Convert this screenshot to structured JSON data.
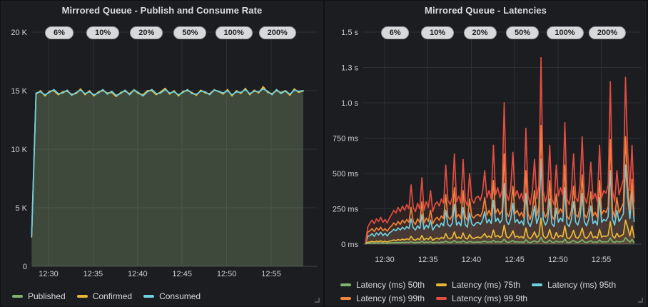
{
  "page": {
    "background": "#131418",
    "panel_background": "#1b1d20"
  },
  "charts": [
    {
      "title": "Mirrored Queue - Publish and Consume Rate",
      "type": "line",
      "x_start": 28.1,
      "x_step": 0.5,
      "x_axis": {
        "ticks": [
          {
            "t": 30,
            "label": "12:30"
          },
          {
            "t": 35,
            "label": "12:35"
          },
          {
            "t": 40,
            "label": "12:40"
          },
          {
            "t": 45,
            "label": "12:45"
          },
          {
            "t": 50,
            "label": "12:50"
          },
          {
            "t": 55,
            "label": "12:55"
          }
        ]
      },
      "y_axis": {
        "max": 20000,
        "ticks": [
          {
            "v": 0,
            "label": "0"
          },
          {
            "v": 5000,
            "label": "5 K"
          },
          {
            "v": 10000,
            "label": "10 K"
          },
          {
            "v": 15000,
            "label": "15 K"
          },
          {
            "v": 20000,
            "label": "20 K"
          }
        ]
      },
      "annotations": [
        {
          "t": 31.2,
          "label": "6%"
        },
        {
          "t": 36.1,
          "label": "10%"
        },
        {
          "t": 41.0,
          "label": "20%"
        },
        {
          "t": 45.9,
          "label": "50%"
        },
        {
          "t": 50.8,
          "label": "100%"
        },
        {
          "t": 55.7,
          "label": "200%"
        }
      ],
      "series": [
        {
          "name": "Published",
          "color": "#7EB26D",
          "values": [
            2600,
            14750,
            14950,
            14600,
            14900,
            15050,
            14700,
            14850,
            15000,
            14650,
            14800,
            15100,
            14700,
            14950,
            14600,
            14850,
            15050,
            14750,
            14900,
            14550,
            14800,
            15000,
            14700,
            15100,
            14800,
            14600,
            14950,
            15050,
            14700,
            14850,
            15150,
            14750,
            14950,
            14600,
            14900,
            15050,
            14800,
            14650,
            15000,
            14850,
            14700,
            15100,
            14900,
            14750,
            15050,
            14600,
            14950,
            14800,
            15150,
            14700,
            15000,
            14850,
            15200,
            14900,
            14700,
            15050,
            14800,
            14950,
            14650,
            15100,
            14900,
            14950
          ]
        },
        {
          "name": "Confirmed",
          "color": "#EAB839",
          "values": [
            2500,
            14700,
            15000,
            14550,
            14950,
            15000,
            14650,
            14900,
            14950,
            14700,
            14750,
            15150,
            14650,
            15000,
            14550,
            14900,
            15000,
            14800,
            14850,
            14500,
            14850,
            14950,
            14750,
            15050,
            14750,
            14650,
            15000,
            15000,
            14650,
            14900,
            15200,
            14700,
            15000,
            14550,
            14950,
            15000,
            14850,
            14600,
            15050,
            14800,
            14750,
            15050,
            14950,
            14700,
            15100,
            14550,
            15000,
            14750,
            15200,
            14650,
            15050,
            14800,
            15350,
            14850,
            14750,
            15000,
            14850,
            15000,
            14600,
            15150,
            14850,
            15000
          ]
        },
        {
          "name": "Consumed",
          "color": "#6ED0E0",
          "values": [
            2550,
            14800,
            14900,
            14650,
            14850,
            15100,
            14750,
            14800,
            15050,
            14600,
            14850,
            15050,
            14750,
            14900,
            14650,
            14800,
            15100,
            14700,
            14950,
            14600,
            14750,
            15050,
            14650,
            15050,
            14850,
            14550,
            14900,
            15100,
            14750,
            14800,
            15100,
            14800,
            14900,
            14650,
            14850,
            15100,
            14750,
            14700,
            14950,
            14900,
            14650,
            15050,
            14950,
            14800,
            15000,
            14650,
            14900,
            14850,
            15100,
            14750,
            14950,
            14900,
            15150,
            14950,
            14650,
            15100,
            14750,
            15000,
            14700,
            15050,
            14950,
            15000
          ]
        }
      ]
    },
    {
      "title": "Mirrored Queue - Latencies",
      "type": "line",
      "x_start": 27.8,
      "x_step": 0.25,
      "x_axis": {
        "ticks": [
          {
            "t": 30,
            "label": "12:30"
          },
          {
            "t": 35,
            "label": "12:35"
          },
          {
            "t": 40,
            "label": "12:40"
          },
          {
            "t": 45,
            "label": "12:45"
          },
          {
            "t": 50,
            "label": "12:50"
          },
          {
            "t": 55,
            "label": "12:55"
          }
        ]
      },
      "y_axis": {
        "max": 1500,
        "ticks": [
          {
            "v": 0,
            "label": "0 ms"
          },
          {
            "v": 250,
            "label": "250 ms"
          },
          {
            "v": 500,
            "label": "500 ms"
          },
          {
            "v": 750,
            "label": "750 ms"
          },
          {
            "v": 1000,
            "label": "1.0 s"
          },
          {
            "v": 1250,
            "label": "1.3 s"
          },
          {
            "v": 1500,
            "label": "1.5 s"
          }
        ]
      },
      "annotations": [
        {
          "t": 31.2,
          "label": "6%"
        },
        {
          "t": 36.1,
          "label": "10%"
        },
        {
          "t": 41.0,
          "label": "20%"
        },
        {
          "t": 45.9,
          "label": "50%"
        },
        {
          "t": 50.8,
          "label": "100%"
        },
        {
          "t": 55.7,
          "label": "200%"
        }
      ],
      "series": [
        {
          "name": "Latency (ms) 50th",
          "color": "#7EB26D",
          "values": [
            3,
            6,
            7,
            9,
            6,
            10,
            8,
            11,
            7,
            9,
            6,
            10,
            9,
            11,
            10,
            12,
            10,
            13,
            11,
            14,
            12,
            18,
            12,
            10,
            14,
            12,
            20,
            11,
            15,
            12,
            17,
            10,
            12,
            14,
            11,
            15,
            13,
            22,
            14,
            12,
            15,
            26,
            13,
            16,
            12,
            24,
            14,
            11,
            20,
            15,
            12,
            15,
            15,
            13,
            17,
            22,
            14,
            17,
            13,
            28,
            15,
            18,
            14,
            17,
            36,
            16,
            13,
            18,
            26,
            15,
            17,
            14,
            16,
            12,
            32,
            15,
            11,
            17,
            25,
            14,
            19,
            48,
            17,
            12,
            16,
            30,
            14,
            11,
            23,
            15,
            18,
            15,
            36,
            13,
            11,
            17,
            28,
            15,
            12,
            19,
            33,
            15,
            12,
            17,
            25,
            13,
            16,
            12,
            30,
            15,
            17,
            16,
            19,
            44,
            17,
            12,
            22,
            15,
            18,
            20,
            46,
            30,
            14,
            34,
            12
          ]
        },
        {
          "name": "Latency (ms) 75th",
          "color": "#EAB839",
          "values": [
            5,
            14,
            16,
            20,
            15,
            22,
            18,
            24,
            16,
            21,
            15,
            22,
            24,
            30,
            26,
            33,
            28,
            36,
            30,
            38,
            32,
            55,
            34,
            28,
            40,
            32,
            62,
            30,
            42,
            34,
            52,
            28,
            38,
            44,
            36,
            48,
            40,
            75,
            44,
            38,
            48,
            88,
            42,
            50,
            40,
            80,
            44,
            36,
            68,
            46,
            40,
            48,
            50,
            44,
            56,
            75,
            48,
            58,
            46,
            100,
            52,
            62,
            48,
            58,
            135,
            54,
            44,
            60,
            95,
            50,
            58,
            46,
            54,
            42,
            115,
            50,
            38,
            58,
            88,
            46,
            64,
            185,
            58,
            42,
            54,
            105,
            46,
            38,
            82,
            50,
            62,
            52,
            130,
            46,
            38,
            58,
            98,
            50,
            42,
            64,
            115,
            52,
            40,
            58,
            88,
            46,
            54,
            42,
            105,
            50,
            58,
            54,
            64,
            160,
            58,
            42,
            78,
            52,
            60,
            70,
            170,
            120,
            58,
            130,
            48
          ]
        },
        {
          "name": "Latency (ms) 95th",
          "color": "#6ED0E0",
          "values": [
            8,
            55,
            60,
            75,
            55,
            80,
            65,
            85,
            60,
            78,
            58,
            80,
            90,
            105,
            95,
            115,
            100,
            120,
            105,
            125,
            110,
            180,
            115,
            100,
            130,
            110,
            210,
            105,
            135,
            115,
            170,
            100,
            125,
            140,
            120,
            150,
            130,
            240,
            140,
            125,
            150,
            280,
            135,
            155,
            130,
            260,
            140,
            120,
            220,
            145,
            130,
            150,
            155,
            140,
            170,
            230,
            150,
            175,
            145,
            310,
            160,
            185,
            150,
            175,
            430,
            165,
            140,
            180,
            290,
            155,
            175,
            145,
            165,
            135,
            360,
            155,
            125,
            175,
            270,
            145,
            195,
            600,
            175,
            135,
            165,
            320,
            145,
            125,
            255,
            155,
            185,
            160,
            400,
            145,
            125,
            175,
            300,
            155,
            135,
            195,
            360,
            160,
            130,
            175,
            270,
            145,
            165,
            135,
            330,
            155,
            175,
            165,
            195,
            520,
            175,
            135,
            240,
            160,
            185,
            215,
            560,
            340,
            180,
            380,
            160
          ]
        },
        {
          "name": "Latency (ms) 99th",
          "color": "#EF843C",
          "values": [
            10,
            85,
            95,
            110,
            90,
            115,
            100,
            120,
            95,
            110,
            92,
            115,
            130,
            150,
            135,
            160,
            140,
            170,
            150,
            175,
            155,
            260,
            160,
            140,
            180,
            155,
            300,
            150,
            185,
            160,
            240,
            145,
            175,
            190,
            170,
            200,
            180,
            350,
            195,
            175,
            205,
            400,
            190,
            210,
            180,
            380,
            195,
            170,
            320,
            200,
            185,
            205,
            210,
            195,
            230,
            330,
            205,
            240,
            200,
            450,
            220,
            250,
            210,
            240,
            640,
            225,
            195,
            245,
            410,
            215,
            240,
            200,
            225,
            190,
            520,
            215,
            175,
            240,
            380,
            200,
            265,
            840,
            240,
            190,
            225,
            450,
            200,
            175,
            355,
            215,
            250,
            220,
            560,
            200,
            175,
            240,
            410,
            210,
            190,
            265,
            490,
            215,
            185,
            240,
            370,
            200,
            225,
            190,
            450,
            210,
            240,
            225,
            265,
            740,
            240,
            190,
            330,
            220,
            255,
            290,
            760,
            420,
            240,
            460,
            200
          ]
        },
        {
          "name": "Latency (ms) 99.9th",
          "color": "#E24D42",
          "values": [
            15,
            120,
            150,
            170,
            145,
            180,
            160,
            190,
            155,
            175,
            150,
            185,
            210,
            240,
            220,
            260,
            230,
            270,
            240,
            280,
            250,
            420,
            260,
            230,
            290,
            250,
            470,
            240,
            300,
            260,
            380,
            230,
            280,
            300,
            270,
            320,
            290,
            560,
            310,
            280,
            330,
            640,
            300,
            340,
            290,
            600,
            310,
            270,
            500,
            320,
            290,
            330,
            340,
            310,
            370,
            520,
            330,
            380,
            320,
            700,
            350,
            400,
            330,
            380,
            1000,
            360,
            310,
            390,
            650,
            340,
            380,
            320,
            360,
            300,
            820,
            340,
            280,
            380,
            600,
            320,
            420,
            1320,
            380,
            300,
            360,
            700,
            320,
            280,
            560,
            340,
            400,
            350,
            860,
            320,
            280,
            380,
            640,
            330,
            300,
            420,
            760,
            340,
            290,
            380,
            580,
            320,
            360,
            300,
            700,
            330,
            380,
            360,
            420,
            1150,
            380,
            300,
            520,
            350,
            400,
            460,
            1180,
            650,
            380,
            700,
            300
          ]
        }
      ]
    }
  ]
}
